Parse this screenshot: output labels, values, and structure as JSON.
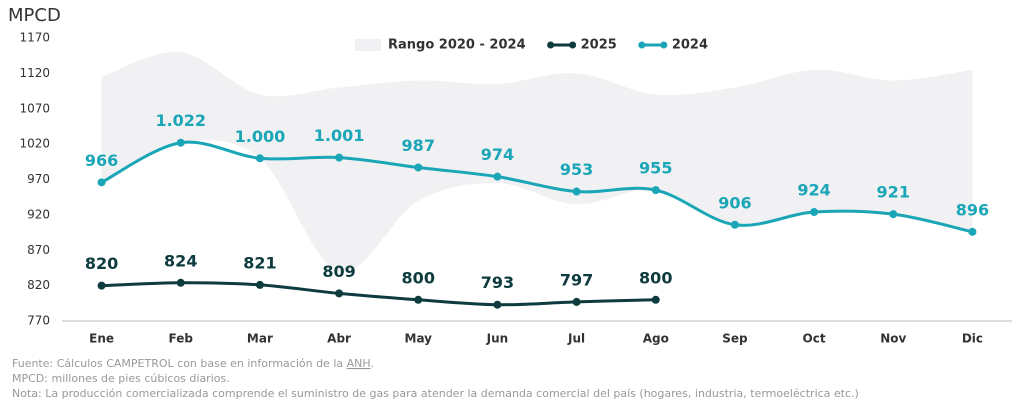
{
  "chart_data": {
    "type": "line",
    "title": "MPCD",
    "categories": [
      "Ene",
      "Feb",
      "Mar",
      "Abr",
      "May",
      "Jun",
      "Jul",
      "Ago",
      "Sep",
      "Oct",
      "Nov",
      "Dic"
    ],
    "ylim": [
      770,
      1170
    ],
    "yticks": [
      770,
      820,
      870,
      920,
      970,
      1020,
      1070,
      1120,
      1170
    ],
    "series": [
      {
        "name": "Rango 2020 - 2024",
        "type": "range",
        "color": "#f1f1f3",
        "high": [
          1115,
          1150,
          1090,
          1100,
          1110,
          1105,
          1120,
          1090,
          1100,
          1125,
          1110,
          1125
        ],
        "low": [
          966,
          1022,
          1000,
          840,
          940,
          965,
          935,
          955,
          906,
          924,
          921,
          896
        ]
      },
      {
        "name": "2025",
        "color": "#0d3b3e",
        "values": [
          820,
          824,
          821,
          809,
          800,
          793,
          797,
          800,
          null,
          null,
          null,
          null
        ]
      },
      {
        "name": "2024",
        "color": "#1aa6b7",
        "values": [
          966,
          1022,
          1000,
          1001,
          987,
          974,
          953,
          955,
          906,
          924,
          921,
          896
        ],
        "value_labels": [
          "966",
          "1.022",
          "1.000",
          "1.001",
          "987",
          "974",
          "953",
          "955",
          "906",
          "924",
          "921",
          "896"
        ]
      }
    ],
    "notes": {
      "source": "Fuente: Cálculos CAMPETROL con base en información de la ",
      "source_link": "ANH",
      "source_end": ".",
      "definition": "MPCD: millones de pies cúbicos diarios.",
      "note": "Nota: La producción comercializada comprende el suministro de gas para atender la demanda comercial del país (hogares, industria, termoeléctrica etc.)"
    }
  }
}
